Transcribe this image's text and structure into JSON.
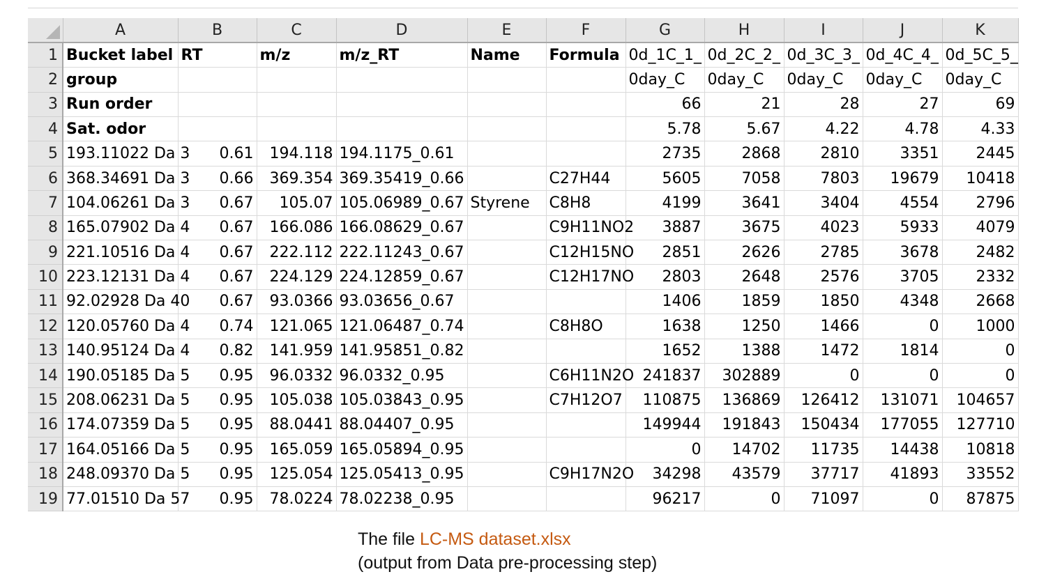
{
  "columns": [
    "A",
    "B",
    "C",
    "D",
    "E",
    "F",
    "G",
    "H",
    "I",
    "J",
    "K"
  ],
  "rows": [
    {
      "n": "1",
      "cells": [
        "Bucket label",
        "RT",
        "m/z",
        "m/z_RT",
        "Name",
        "Formula",
        "0d_1C_1_",
        "0d_2C_2_",
        "0d_3C_3_",
        "0d_4C_4_",
        "0d_5C_5_"
      ]
    },
    {
      "n": "2",
      "cells": [
        "group",
        "",
        "",
        "",
        "",
        "",
        "0day_C",
        "0day_C",
        "0day_C",
        "0day_C",
        "0day_C"
      ]
    },
    {
      "n": "3",
      "cells": [
        "Run order",
        "",
        "",
        "",
        "",
        "",
        "66",
        "21",
        "28",
        "27",
        "69"
      ]
    },
    {
      "n": "4",
      "cells": [
        "Sat. odor",
        "",
        "",
        "",
        "",
        "",
        "5.78",
        "5.67",
        "4.22",
        "4.78",
        "4.33"
      ]
    },
    {
      "n": "5",
      "cells": [
        "193.11022 Da 3",
        "0.61",
        "194.118",
        "194.1175_0.61",
        "",
        "",
        "2735",
        "2868",
        "2810",
        "3351",
        "2445"
      ]
    },
    {
      "n": "6",
      "cells": [
        "368.34691 Da 3",
        "0.66",
        "369.354",
        "369.35419_0.66",
        "",
        "C27H44",
        "5605",
        "7058",
        "7803",
        "19679",
        "10418"
      ]
    },
    {
      "n": "7",
      "cells": [
        "104.06261 Da 3",
        "0.67",
        "105.07",
        "105.06989_0.67",
        "Styrene",
        "C8H8",
        "4199",
        "3641",
        "3404",
        "4554",
        "2796"
      ]
    },
    {
      "n": "8",
      "cells": [
        "165.07902 Da 4",
        "0.67",
        "166.086",
        "166.08629_0.67",
        "",
        "C9H11NO2",
        "3887",
        "3675",
        "4023",
        "5933",
        "4079"
      ]
    },
    {
      "n": "9",
      "cells": [
        "221.10516 Da 4",
        "0.67",
        "222.112",
        "222.11243_0.67",
        "",
        "C12H15NO",
        "2851",
        "2626",
        "2785",
        "3678",
        "2482"
      ]
    },
    {
      "n": "10",
      "cells": [
        "223.12131 Da 4",
        "0.67",
        "224.129",
        "224.12859_0.67",
        "",
        "C12H17NO",
        "2803",
        "2648",
        "2576",
        "3705",
        "2332"
      ]
    },
    {
      "n": "11",
      "cells": [
        "92.02928 Da 40",
        "0.67",
        "93.0366",
        "93.03656_0.67",
        "",
        "",
        "1406",
        "1859",
        "1850",
        "4348",
        "2668"
      ]
    },
    {
      "n": "12",
      "cells": [
        "120.05760 Da 4",
        "0.74",
        "121.065",
        "121.06487_0.74",
        "",
        "C8H8O",
        "1638",
        "1250",
        "1466",
        "0",
        "1000"
      ]
    },
    {
      "n": "13",
      "cells": [
        "140.95124 Da 4",
        "0.82",
        "141.959",
        "141.95851_0.82",
        "",
        "",
        "1652",
        "1388",
        "1472",
        "1814",
        "0"
      ]
    },
    {
      "n": "14",
      "cells": [
        "190.05185 Da 5",
        "0.95",
        "96.0332",
        "96.0332_0.95",
        "",
        "C6H11N2O",
        "241837",
        "302889",
        "0",
        "0",
        "0"
      ]
    },
    {
      "n": "15",
      "cells": [
        "208.06231 Da 5",
        "0.95",
        "105.038",
        "105.03843_0.95",
        "",
        "C7H12O7",
        "110875",
        "136869",
        "126412",
        "131071",
        "104657"
      ]
    },
    {
      "n": "16",
      "cells": [
        "174.07359 Da 5",
        "0.95",
        "88.0441",
        "88.04407_0.95",
        "",
        "",
        "149944",
        "191843",
        "150434",
        "177055",
        "127710"
      ]
    },
    {
      "n": "17",
      "cells": [
        "164.05166 Da 5",
        "0.95",
        "165.059",
        "165.05894_0.95",
        "",
        "",
        "0",
        "14702",
        "11735",
        "14438",
        "10818"
      ]
    },
    {
      "n": "18",
      "cells": [
        "248.09370 Da 5",
        "0.95",
        "125.054",
        "125.05413_0.95",
        "",
        "C9H17N2O",
        "34298",
        "43579",
        "37717",
        "41893",
        "33552"
      ]
    },
    {
      "n": "19",
      "cells": [
        "77.01510 Da 57",
        "0.95",
        "78.0224",
        "78.02238_0.95",
        "",
        "",
        "96217",
        "0",
        "71097",
        "0",
        "87875"
      ]
    }
  ],
  "caption": {
    "prefix": "The file ",
    "filename": "LC-MS dataset.xlsx",
    "note": "(output from Data pre-processing step)"
  },
  "colors": {
    "filename": "#c55a11",
    "header_bg": "#e6e6e6"
  }
}
